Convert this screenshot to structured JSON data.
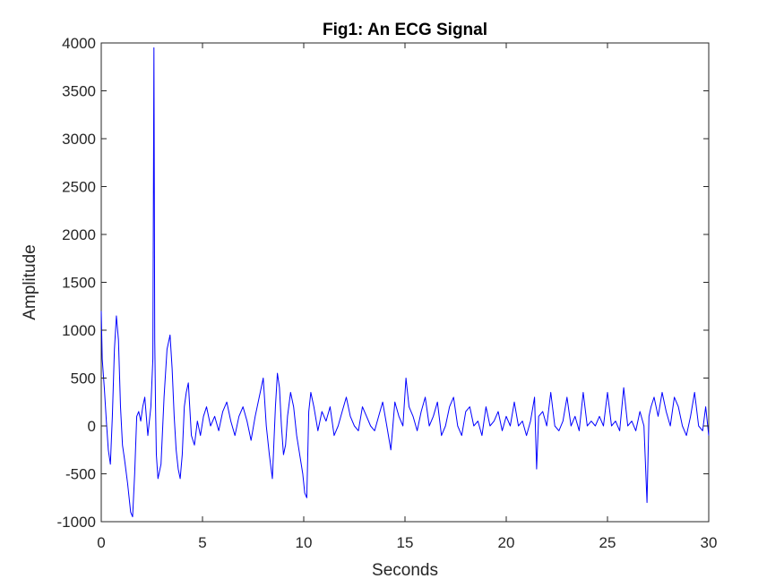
{
  "figure": {
    "title": "Fig1: An ECG Signal",
    "xlabel": "Seconds",
    "ylabel": "Amplitude"
  },
  "chart_data": {
    "type": "line",
    "title": "Fig1: An ECG Signal",
    "xlabel": "Seconds",
    "ylabel": "Amplitude",
    "xlim": [
      0,
      30
    ],
    "ylim": [
      -1000,
      4000
    ],
    "xticks": [
      0,
      5,
      10,
      15,
      20,
      25,
      30
    ],
    "yticks": [
      -1000,
      -500,
      0,
      500,
      1000,
      1500,
      2000,
      2500,
      3000,
      3500,
      4000
    ],
    "grid": false,
    "box": true,
    "series": [
      {
        "color": "#0000ff",
        "x": [
          0,
          0.05,
          0.15,
          0.25,
          0.35,
          0.45,
          0.55,
          0.65,
          0.75,
          0.85,
          0.95,
          1.05,
          1.15,
          1.3,
          1.45,
          1.55,
          1.65,
          1.75,
          1.85,
          1.95,
          2.05,
          2.15,
          2.3,
          2.45,
          2.55,
          2.6,
          2.64,
          2.68,
          2.72,
          2.8,
          2.95,
          3.1,
          3.25,
          3.4,
          3.5,
          3.6,
          3.7,
          3.8,
          3.9,
          4.0,
          4.1,
          4.2,
          4.3,
          4.45,
          4.6,
          4.75,
          4.9,
          5.05,
          5.2,
          5.4,
          5.6,
          5.8,
          6.0,
          6.2,
          6.4,
          6.6,
          6.8,
          7.0,
          7.2,
          7.4,
          7.6,
          7.8,
          8.0,
          8.15,
          8.3,
          8.45,
          8.6,
          8.7,
          8.8,
          8.9,
          9.0,
          9.1,
          9.2,
          9.35,
          9.5,
          9.65,
          9.8,
          9.95,
          10.05,
          10.15,
          10.25,
          10.35,
          10.5,
          10.7,
          10.9,
          11.1,
          11.3,
          11.5,
          11.7,
          11.9,
          12.1,
          12.3,
          12.5,
          12.7,
          12.9,
          13.1,
          13.3,
          13.5,
          13.7,
          13.9,
          14.1,
          14.3,
          14.5,
          14.7,
          14.9,
          15.05,
          15.2,
          15.4,
          15.6,
          15.8,
          16.0,
          16.2,
          16.4,
          16.6,
          16.8,
          17.0,
          17.2,
          17.4,
          17.6,
          17.8,
          18.0,
          18.2,
          18.4,
          18.6,
          18.8,
          19.0,
          19.2,
          19.4,
          19.6,
          19.8,
          20.0,
          20.2,
          20.4,
          20.6,
          20.8,
          21.0,
          21.2,
          21.4,
          21.5,
          21.6,
          21.8,
          22.0,
          22.2,
          22.4,
          22.6,
          22.8,
          23.0,
          23.2,
          23.4,
          23.6,
          23.8,
          24.0,
          24.2,
          24.4,
          24.6,
          24.8,
          25.0,
          25.2,
          25.4,
          25.6,
          25.8,
          26.0,
          26.2,
          26.4,
          26.6,
          26.8,
          26.95,
          27.05,
          27.15,
          27.3,
          27.5,
          27.7,
          27.9,
          28.1,
          28.3,
          28.5,
          28.7,
          28.9,
          29.1,
          29.3,
          29.5,
          29.7,
          29.85,
          30.0
        ],
        "y": [
          1200,
          700,
          400,
          50,
          -250,
          -400,
          100,
          800,
          1150,
          900,
          200,
          -200,
          -350,
          -600,
          -900,
          -950,
          -500,
          100,
          150,
          50,
          200,
          300,
          -100,
          200,
          700,
          3950,
          900,
          200,
          -300,
          -550,
          -400,
          300,
          800,
          950,
          600,
          100,
          -250,
          -450,
          -550,
          -300,
          200,
          350,
          450,
          -100,
          -200,
          50,
          -100,
          100,
          200,
          0,
          100,
          -50,
          150,
          250,
          50,
          -100,
          100,
          200,
          50,
          -150,
          100,
          300,
          500,
          0,
          -300,
          -550,
          200,
          550,
          400,
          0,
          -300,
          -200,
          100,
          350,
          200,
          -100,
          -300,
          -500,
          -700,
          -750,
          150,
          350,
          200,
          -50,
          150,
          50,
          200,
          -100,
          0,
          150,
          300,
          100,
          0,
          -50,
          200,
          100,
          0,
          -50,
          100,
          250,
          0,
          -250,
          250,
          100,
          0,
          500,
          200,
          100,
          -50,
          150,
          300,
          0,
          100,
          250,
          -100,
          0,
          200,
          300,
          0,
          -100,
          150,
          200,
          0,
          50,
          -100,
          200,
          0,
          50,
          150,
          -50,
          100,
          0,
          250,
          0,
          50,
          -100,
          50,
          300,
          -450,
          100,
          150,
          0,
          350,
          0,
          -50,
          50,
          300,
          0,
          100,
          -50,
          350,
          0,
          50,
          0,
          100,
          0,
          350,
          0,
          50,
          -50,
          400,
          0,
          50,
          -50,
          150,
          0,
          -800,
          100,
          200,
          300,
          100,
          350,
          150,
          0,
          300,
          200,
          0,
          -100,
          100,
          350,
          0,
          -50,
          200,
          -100
        ]
      }
    ]
  }
}
